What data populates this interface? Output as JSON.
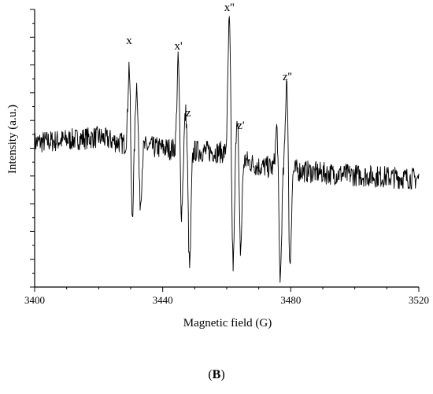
{
  "panel": {
    "open": "(",
    "letter": "B",
    "close": ")"
  },
  "chart_data": {
    "type": "line",
    "title": "",
    "xlabel": "Magnetic field (G)",
    "ylabel": "Intensity (a.u.)",
    "xlim": [
      3400,
      3520
    ],
    "ylim": [
      -1.0,
      1.0
    ],
    "x_ticks": [
      3400,
      3440,
      3480,
      3520
    ],
    "y_tick_labels_shown": false,
    "grid": false,
    "legend": "none",
    "series": [
      {
        "color": "#000000",
        "noise_level": 0.08,
        "baseline": [
          [
            3400,
            0.04
          ],
          [
            3420,
            0.08
          ],
          [
            3430,
            0.02
          ],
          [
            3450,
            -0.02
          ],
          [
            3460,
            -0.03
          ],
          [
            3470,
            -0.13
          ],
          [
            3490,
            -0.18
          ],
          [
            3520,
            -0.22
          ]
        ],
        "peaks": [
          [
            3429.6,
            0.65
          ],
          [
            3430.4,
            -0.58
          ],
          [
            3431.9,
            0.45
          ],
          [
            3433.0,
            -0.42
          ],
          [
            3444.9,
            0.68
          ],
          [
            3445.8,
            -0.5
          ],
          [
            3447.2,
            0.28
          ],
          [
            3448.4,
            -0.85
          ],
          [
            3460.8,
            0.95
          ],
          [
            3462.0,
            -0.8
          ],
          [
            3463.3,
            0.35
          ],
          [
            3464.3,
            -0.68
          ],
          [
            3475.7,
            0.32
          ],
          [
            3476.7,
            -0.8
          ],
          [
            3478.8,
            0.72
          ],
          [
            3479.7,
            -0.75
          ]
        ]
      }
    ],
    "annotations": [
      {
        "text": "x",
        "x": 3429.5,
        "y": 0.75
      },
      {
        "text": "x'",
        "x": 3444.9,
        "y": 0.71
      },
      {
        "text": "z",
        "x": 3448.0,
        "y": 0.23
      },
      {
        "text": "x''",
        "x": 3460.8,
        "y": 0.99
      },
      {
        "text": "z'",
        "x": 3464.4,
        "y": 0.14
      },
      {
        "text": "z''",
        "x": 3478.9,
        "y": 0.49
      }
    ]
  }
}
